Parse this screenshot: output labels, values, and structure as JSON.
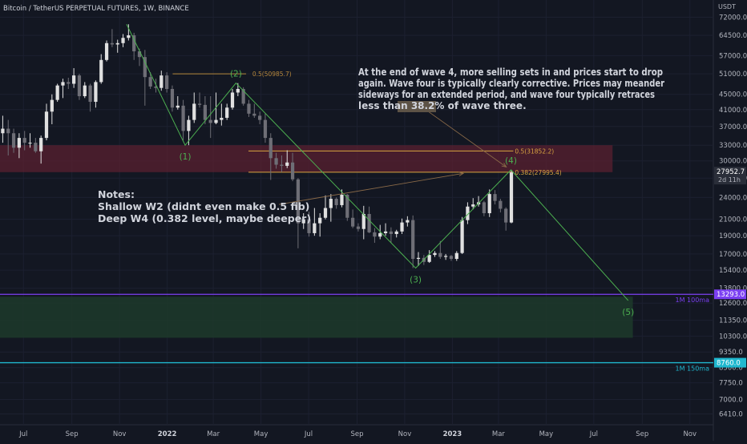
{
  "chart_data": {
    "type": "candlestick",
    "title": "Bitcoin / TetherUS PERPETUAL FUTURES, 1W, BINANCE",
    "currency": "USDT",
    "y_scale": "log",
    "ylim": [
      6000,
      80000
    ],
    "x_range": [
      "2021-06-01",
      "2023-12-01"
    ],
    "y_ticks": [
      "72000.0",
      "64500.0",
      "57000.0",
      "51000.0",
      "45000.0",
      "41000.0",
      "37000.0",
      "33000.0",
      "30000.0",
      "27000.0",
      "24000.0",
      "21000.0",
      "19000.0",
      "17000.0",
      "15400.0",
      "13800.0",
      "12600.0",
      "11350.0",
      "10300.0",
      "9350.0",
      "8500.0",
      "7750.0",
      "7000.0",
      "6410.0"
    ],
    "x_ticks": [
      {
        "label": "Jul",
        "date": "2021-07-01",
        "bold": false
      },
      {
        "label": "Sep",
        "date": "2021-09-01",
        "bold": false
      },
      {
        "label": "Nov",
        "date": "2021-11-01",
        "bold": false
      },
      {
        "label": "2022",
        "date": "2022-01-01",
        "bold": true
      },
      {
        "label": "Mar",
        "date": "2022-03-01",
        "bold": false
      },
      {
        "label": "May",
        "date": "2022-05-01",
        "bold": false
      },
      {
        "label": "Jul",
        "date": "2022-07-01",
        "bold": false
      },
      {
        "label": "Sep",
        "date": "2022-09-01",
        "bold": false
      },
      {
        "label": "Nov",
        "date": "2022-11-01",
        "bold": false
      },
      {
        "label": "2023",
        "date": "2023-01-01",
        "bold": true
      },
      {
        "label": "Mar",
        "date": "2023-03-01",
        "bold": false
      },
      {
        "label": "May",
        "date": "2023-05-01",
        "bold": false
      },
      {
        "label": "Jul",
        "date": "2023-07-01",
        "bold": false
      },
      {
        "label": "Sep",
        "date": "2023-09-01",
        "bold": false
      },
      {
        "label": "Nov",
        "date": "2023-11-01",
        "bold": false
      }
    ],
    "candles": [
      [
        "2021-06-01",
        35500,
        39500,
        33500,
        36500
      ],
      [
        "2021-06-08",
        36500,
        38500,
        31000,
        35500
      ],
      [
        "2021-06-15",
        35500,
        36500,
        31500,
        32500
      ],
      [
        "2021-06-22",
        32500,
        35500,
        30500,
        34500
      ],
      [
        "2021-06-29",
        34500,
        36000,
        32000,
        33500
      ],
      [
        "2021-07-06",
        33500,
        35500,
        32500,
        33500
      ],
      [
        "2021-07-13",
        33500,
        34500,
        31500,
        31800
      ],
      [
        "2021-07-20",
        31800,
        35000,
        29500,
        34500
      ],
      [
        "2021-07-27",
        34500,
        42500,
        34000,
        40500
      ],
      [
        "2021-08-03",
        40500,
        45000,
        37500,
        43500
      ],
      [
        "2021-08-10",
        43500,
        48000,
        43000,
        47500
      ],
      [
        "2021-08-17",
        47500,
        49500,
        44000,
        48500
      ],
      [
        "2021-08-24",
        48500,
        49800,
        46500,
        48000
      ],
      [
        "2021-08-31",
        48000,
        52800,
        46800,
        50500
      ],
      [
        "2021-09-07",
        50500,
        51000,
        43500,
        44500
      ],
      [
        "2021-09-14",
        44500,
        48500,
        44000,
        47500
      ],
      [
        "2021-09-21",
        47500,
        48000,
        40500,
        43000
      ],
      [
        "2021-09-28",
        43000,
        49000,
        41500,
        48500
      ],
      [
        "2021-10-05",
        48500,
        57500,
        48000,
        55500
      ],
      [
        "2021-10-12",
        55500,
        62500,
        55000,
        61500
      ],
      [
        "2021-10-19",
        61500,
        67000,
        60000,
        61000
      ],
      [
        "2021-10-26",
        61000,
        62800,
        58000,
        61500
      ],
      [
        "2021-11-02",
        61500,
        65000,
        60000,
        63500
      ],
      [
        "2021-11-09",
        63500,
        69000,
        62500,
        64500
      ],
      [
        "2021-11-16",
        64500,
        65500,
        55500,
        58500
      ],
      [
        "2021-11-23",
        58500,
        59500,
        53500,
        56500
      ],
      [
        "2021-11-30",
        56500,
        59000,
        42000,
        50000
      ],
      [
        "2021-12-07",
        50000,
        51500,
        46500,
        47200
      ],
      [
        "2021-12-14",
        47200,
        49500,
        45500,
        46800
      ],
      [
        "2021-12-21",
        46800,
        52000,
        46000,
        50500
      ],
      [
        "2021-12-28",
        50500,
        51500,
        45500,
        46500
      ],
      [
        "2022-01-04",
        46500,
        47500,
        40500,
        41500
      ],
      [
        "2022-01-11",
        41500,
        44500,
        41000,
        42000
      ],
      [
        "2022-01-18",
        42000,
        43500,
        34000,
        36000
      ],
      [
        "2022-01-25",
        36000,
        39500,
        33000,
        38500
      ],
      [
        "2022-02-01",
        38500,
        45500,
        37800,
        42500
      ],
      [
        "2022-02-08",
        42500,
        45500,
        41500,
        42200
      ],
      [
        "2022-02-15",
        42200,
        44500,
        37500,
        38500
      ],
      [
        "2022-02-22",
        38500,
        44500,
        34500,
        37800
      ],
      [
        "2022-03-01",
        37800,
        45500,
        37500,
        38500
      ],
      [
        "2022-03-08",
        38500,
        42500,
        37200,
        39000
      ],
      [
        "2022-03-15",
        39000,
        42500,
        38500,
        41500
      ],
      [
        "2022-03-22",
        41500,
        46500,
        41000,
        45500
      ],
      [
        "2022-03-29",
        45500,
        48200,
        44500,
        46500
      ],
      [
        "2022-04-05",
        46500,
        47000,
        42000,
        42500
      ],
      [
        "2022-04-12",
        42500,
        43500,
        39200,
        40000
      ],
      [
        "2022-04-19",
        40000,
        42500,
        39000,
        39500
      ],
      [
        "2022-04-26",
        39500,
        40500,
        37500,
        38500
      ],
      [
        "2022-05-03",
        38500,
        40000,
        33500,
        34500
      ],
      [
        "2022-05-10",
        34500,
        35500,
        26700,
        30500
      ],
      [
        "2022-05-17",
        30500,
        31500,
        28600,
        29300
      ],
      [
        "2022-05-24",
        29300,
        31000,
        28000,
        29100
      ],
      [
        "2022-05-31",
        29100,
        32000,
        28700,
        29700
      ],
      [
        "2022-06-07",
        29700,
        31500,
        26500,
        26800
      ],
      [
        "2022-06-14",
        26800,
        27000,
        17600,
        20500
      ],
      [
        "2022-06-21",
        20500,
        21800,
        19800,
        21000
      ],
      [
        "2022-06-28",
        21000,
        22000,
        18900,
        19300
      ],
      [
        "2022-07-05",
        19300,
        22500,
        19000,
        20500
      ],
      [
        "2022-07-12",
        20500,
        21800,
        18900,
        21200
      ],
      [
        "2022-07-19",
        21200,
        24300,
        21000,
        22500
      ],
      [
        "2022-07-26",
        22500,
        24500,
        20700,
        23800
      ],
      [
        "2022-08-02",
        23800,
        24000,
        22400,
        22900
      ],
      [
        "2022-08-09",
        22900,
        25200,
        22600,
        24400
      ],
      [
        "2022-08-16",
        24400,
        24500,
        20800,
        21200
      ],
      [
        "2022-08-23",
        21200,
        22300,
        19900,
        20100
      ],
      [
        "2022-08-30",
        20100,
        20500,
        19500,
        19800
      ],
      [
        "2022-09-06",
        19800,
        22800,
        18600,
        21700
      ],
      [
        "2022-09-13",
        21700,
        22700,
        19300,
        19400
      ],
      [
        "2022-09-20",
        19400,
        19900,
        18200,
        18900
      ],
      [
        "2022-09-27",
        18900,
        20300,
        18600,
        19300
      ],
      [
        "2022-10-04",
        19300,
        20500,
        19000,
        19500
      ],
      [
        "2022-10-11",
        19500,
        20000,
        18200,
        19200
      ],
      [
        "2022-10-18",
        19200,
        19700,
        18800,
        19500
      ],
      [
        "2022-10-25",
        19500,
        21100,
        19200,
        20600
      ],
      [
        "2022-11-01",
        20600,
        21400,
        20100,
        20900
      ],
      [
        "2022-11-08",
        20900,
        21500,
        15600,
        16500
      ],
      [
        "2022-11-15",
        16500,
        17200,
        15800,
        16600
      ],
      [
        "2022-11-22",
        16600,
        16900,
        15900,
        16200
      ],
      [
        "2022-11-29",
        16200,
        17400,
        16100,
        16900
      ],
      [
        "2022-12-06",
        16900,
        17300,
        16700,
        17100
      ],
      [
        "2022-12-13",
        17100,
        18400,
        16500,
        16700
      ],
      [
        "2022-12-20",
        16700,
        17000,
        16400,
        16800
      ],
      [
        "2022-12-27",
        16800,
        16900,
        16300,
        16500
      ],
      [
        "2023-01-03",
        16500,
        17300,
        16300,
        17100
      ],
      [
        "2023-01-10",
        17100,
        21300,
        17000,
        20900
      ],
      [
        "2023-01-17",
        20900,
        23300,
        20400,
        22700
      ],
      [
        "2023-01-24",
        22700,
        23900,
        22300,
        23000
      ],
      [
        "2023-01-31",
        23000,
        24200,
        22700,
        23300
      ],
      [
        "2023-02-07",
        23300,
        23500,
        21400,
        21800
      ],
      [
        "2023-02-14",
        21800,
        25200,
        21300,
        24500
      ],
      [
        "2023-02-21",
        24500,
        25100,
        23000,
        23500
      ],
      [
        "2023-02-28",
        23500,
        23800,
        21900,
        22400
      ],
      [
        "2023-03-07",
        22400,
        22600,
        19600,
        20600
      ],
      [
        "2023-03-14",
        20600,
        28400,
        20500,
        27950
      ]
    ],
    "current_price": {
      "label": "27952.7",
      "timer": "2d 11h",
      "value": 27952.7
    },
    "resistance_zone": {
      "from": 28000,
      "to": 33000,
      "x_start": "2021-06-01",
      "x_end": "2023-07-25"
    },
    "target_zone": {
      "from": 10200,
      "to": 13100,
      "x_start": "2021-06-01",
      "x_end": "2023-08-20"
    },
    "moving_averages": [
      {
        "name": "1M 100ma",
        "value": 13293,
        "value_label": "13293.0",
        "color": "#7b3ff2"
      },
      {
        "name": "1M 150ma",
        "value": 8760,
        "value_label": "8760.0",
        "color": "#1fb8cf"
      }
    ],
    "fib_levels": [
      {
        "label": "0.5(50985.7)",
        "value": 50985.7,
        "color": "#b5873c",
        "x_start": "2022-01-08",
        "x_end": "2022-04-12",
        "label_at": "2022-04-20"
      },
      {
        "label": "0.5(31852.2)",
        "value": 31852.2,
        "color": "#d9a441",
        "x_start": "2022-04-15",
        "x_end": "2023-03-20",
        "label_at": "2023-03-22"
      },
      {
        "label": "0.382(27995.4)",
        "value": 27995.4,
        "color": "#d9a441",
        "x_start": "2022-04-15",
        "x_end": "2023-03-20",
        "label_at": "2023-03-22"
      }
    ],
    "wave_points": [
      {
        "label": "",
        "date": "2021-11-10",
        "value": 69000
      },
      {
        "label": "(1)",
        "date": "2022-01-24",
        "value": 33000
      },
      {
        "label": "(2)",
        "date": "2022-03-30",
        "value": 48200
      },
      {
        "label": "(3)",
        "date": "2022-11-15",
        "value": 15600
      },
      {
        "label": "(4)",
        "date": "2023-03-17",
        "value": 28400
      },
      {
        "label": "(5)",
        "date": "2023-08-14",
        "value": 12800
      }
    ],
    "arrows": [
      {
        "from": [
          "2022-05-24",
          23000
        ],
        "to": [
          "2023-01-15",
          27800
        ]
      },
      {
        "from": [
          "2022-11-22",
          41800
        ],
        "to": [
          "2023-03-11",
          28900
        ]
      }
    ],
    "annotations": {
      "notes": [
        "Notes:",
        "Shallow W2 (didnt even make 0.5 fib)",
        "Deep W4 (0.382 level, maybe deeper)"
      ],
      "wave4_text": [
        "At the end of wave 4, more selling sets in and prices start to drop",
        "again. Wave four is typically clearly corrective. Prices may meander",
        "sideways for an extended period, and wave four typically retraces"
      ],
      "wave4_last_line_pre": "less than ",
      "wave4_last_line_highlight": "38.2%",
      "wave4_last_line_post": " of wave three."
    },
    "colors": {
      "up": "#e0e0e0",
      "down": "#6e6e76",
      "wave": "#4caf50",
      "background": "#131722",
      "grid": "#1c2030",
      "text": "#b2b5be"
    },
    "grid": true,
    "legend": "none"
  }
}
